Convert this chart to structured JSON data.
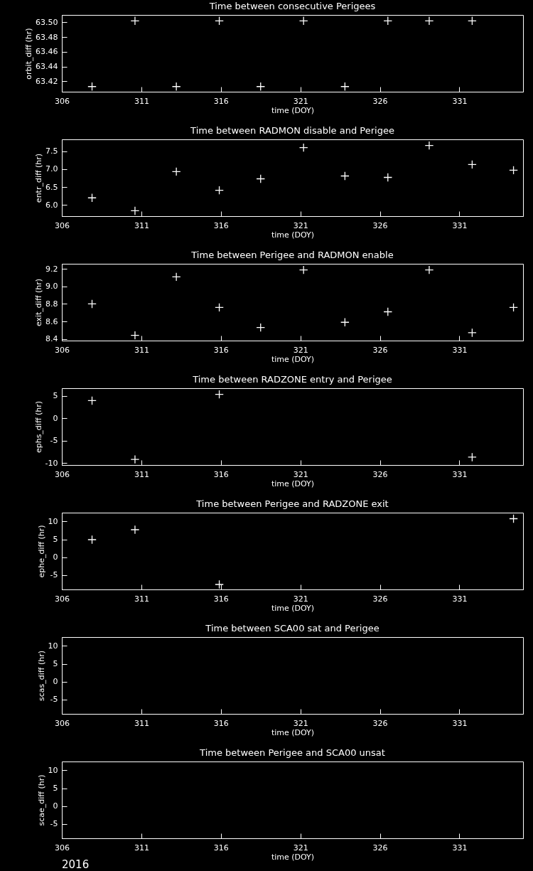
{
  "chart_data": [
    {
      "type": "scatter",
      "title": "Time between consecutive Perigees",
      "xlabel": "time (DOY)",
      "ylabel": "orbit_diff (hr)",
      "x": [
        307.9,
        310.6,
        313.2,
        315.9,
        318.5,
        321.2,
        323.8,
        326.5,
        329.1,
        331.8
      ],
      "values": [
        63.413,
        63.502,
        63.413,
        63.502,
        63.413,
        63.502,
        63.413,
        63.502,
        63.502,
        63.502
      ],
      "color": "#ffffff",
      "marker": "cross",
      "xlim": [
        306,
        335
      ],
      "xticks": [
        306,
        311,
        316,
        321,
        326,
        331
      ],
      "ylim": [
        63.406,
        63.51
      ],
      "yticks": [
        63.42,
        63.44,
        63.46,
        63.48,
        {
          "value": 63.5,
          "label": "63.50"
        }
      ]
    },
    {
      "type": "scatter",
      "title": "Time between RADMON disable and Perigee",
      "xlabel": "time (DOY)",
      "ylabel": "entr_diff (hr)",
      "x": [
        307.9,
        310.6,
        313.2,
        315.9,
        318.5,
        321.2,
        323.8,
        326.5,
        329.1,
        331.8,
        334.4
      ],
      "values": [
        6.2,
        5.84,
        6.93,
        6.41,
        6.73,
        7.6,
        6.81,
        6.77,
        7.66,
        7.13,
        6.97
      ],
      "color": "#ffffff",
      "marker": "cross",
      "xlim": [
        306,
        335
      ],
      "xticks": [
        306,
        311,
        316,
        321,
        326,
        331
      ],
      "ylim": [
        5.69,
        7.83
      ],
      "yticks": [
        {
          "value": 6,
          "label": "6.0"
        },
        6.5,
        {
          "value": 7,
          "label": "7.0"
        },
        7.5
      ]
    },
    {
      "type": "scatter",
      "title": "Time between Perigee and RADMON enable",
      "xlabel": "time (DOY)",
      "ylabel": "exit_diff (hr)",
      "x": [
        307.9,
        310.6,
        313.2,
        315.9,
        318.5,
        321.2,
        323.8,
        326.5,
        329.1,
        331.8,
        334.4
      ],
      "values": [
        8.8,
        8.44,
        9.11,
        8.76,
        8.53,
        9.19,
        8.59,
        8.71,
        9.19,
        8.47,
        8.76
      ],
      "color": "#ffffff",
      "marker": "cross",
      "xlim": [
        306,
        335
      ],
      "xticks": [
        306,
        311,
        316,
        321,
        326,
        331
      ],
      "ylim": [
        8.38,
        9.26
      ],
      "yticks": [
        8.4,
        8.6,
        8.8,
        {
          "value": 9,
          "label": "9.0"
        },
        9.2
      ]
    },
    {
      "type": "scatter",
      "title": "Time between RADZONE entry and Perigee",
      "xlabel": "time (DOY)",
      "ylabel": "ephs_diff (hr)",
      "x": [
        307.9,
        310.6,
        315.9,
        331.8
      ],
      "values": [
        3.9,
        -9.2,
        5.3,
        -8.7
      ],
      "color": "#ffffff",
      "marker": "cross",
      "xlim": [
        306,
        335
      ],
      "xticks": [
        306,
        311,
        316,
        321,
        326,
        331
      ],
      "ylim": [
        -10.45,
        6.67
      ],
      "yticks": [
        -10,
        -5,
        0,
        5
      ]
    },
    {
      "type": "scatter",
      "title": "Time between Perigee and RADZONE exit",
      "xlabel": "time (DOY)",
      "ylabel": "ephe_diff (hr)",
      "x": [
        307.9,
        310.6,
        315.9,
        334.4
      ],
      "values": [
        4.9,
        7.7,
        -7.7,
        10.8
      ],
      "color": "#ffffff",
      "marker": "cross",
      "xlim": [
        306,
        335
      ],
      "xticks": [
        306,
        311,
        316,
        321,
        326,
        331
      ],
      "ylim": [
        -9.1,
        12.5
      ],
      "yticks": [
        -5,
        0,
        5,
        10
      ]
    },
    {
      "type": "scatter",
      "title": "Time between SCA00 sat and Perigee",
      "xlabel": "time (DOY)",
      "ylabel": "scas_diff (hr)",
      "color": "#ffffff",
      "marker": "cross",
      "xlim": [
        306,
        335
      ],
      "xticks": [
        306,
        311,
        316,
        321,
        326,
        331
      ],
      "ylim": [
        -9.1,
        12.5
      ],
      "yticks": [
        -5,
        0,
        5,
        10
      ]
    },
    {
      "type": "scatter",
      "title": "Time between Perigee and SCA00 unsat",
      "xlabel": "time (DOY)",
      "ylabel": "scae_diff (hr)",
      "color": "#ffffff",
      "marker": "cross",
      "xlim": [
        306,
        335
      ],
      "xticks": [
        306,
        311,
        316,
        321,
        326,
        331
      ],
      "ylim": [
        -9.1,
        12.5
      ],
      "yticks": [
        -5,
        0,
        5,
        10
      ],
      "annotations": [
        "2016"
      ]
    }
  ]
}
